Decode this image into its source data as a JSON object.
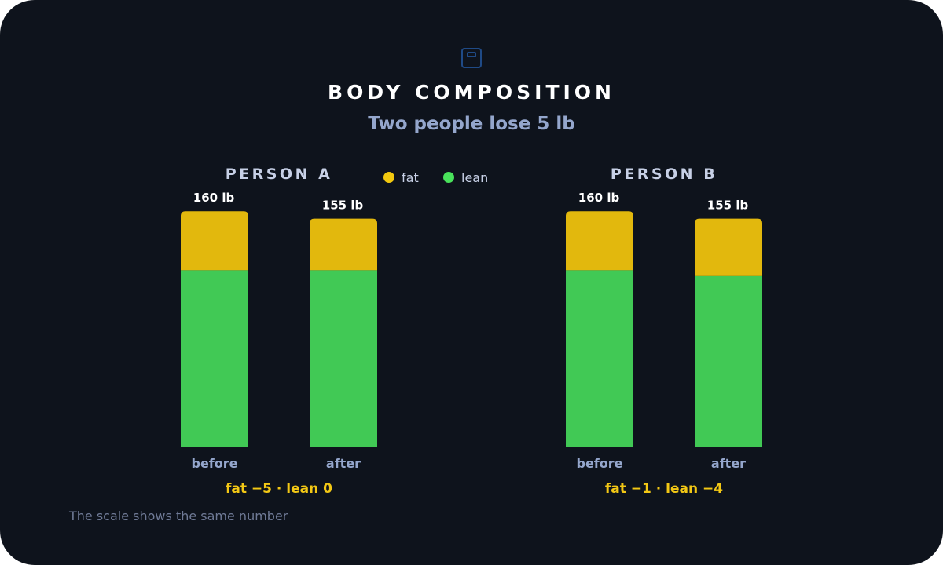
{
  "header": {
    "icon": "scale-icon",
    "title": "BODY COMPOSITION",
    "subtitle": "Two people lose 5 lb"
  },
  "legend": [
    {
      "name": "fat",
      "color": "#f2c80f"
    },
    {
      "name": "lean",
      "color": "#49e25b"
    }
  ],
  "colors": {
    "background": "#0e131c",
    "fat": "#e2b80d",
    "lean": "#41c955",
    "summary": "#f3c815"
  },
  "footnote": "The scale shows the same number",
  "chart_data": [
    {
      "type": "bar",
      "stacked": true,
      "title": "PERSON A",
      "categories": [
        "before",
        "after"
      ],
      "totals": [
        "160 lb",
        "155 lb"
      ],
      "series": [
        {
          "name": "lean",
          "values": [
            120,
            120
          ]
        },
        {
          "name": "fat",
          "values": [
            40,
            35
          ]
        }
      ],
      "ylim": [
        0,
        160
      ],
      "summary": "fat −5 · lean 0"
    },
    {
      "type": "bar",
      "stacked": true,
      "title": "PERSON B",
      "categories": [
        "before",
        "after"
      ],
      "totals": [
        "160 lb",
        "155 lb"
      ],
      "series": [
        {
          "name": "lean",
          "values": [
            120,
            116
          ]
        },
        {
          "name": "fat",
          "values": [
            40,
            39
          ]
        }
      ],
      "ylim": [
        0,
        160
      ],
      "summary": "fat −1 · lean −4"
    }
  ]
}
